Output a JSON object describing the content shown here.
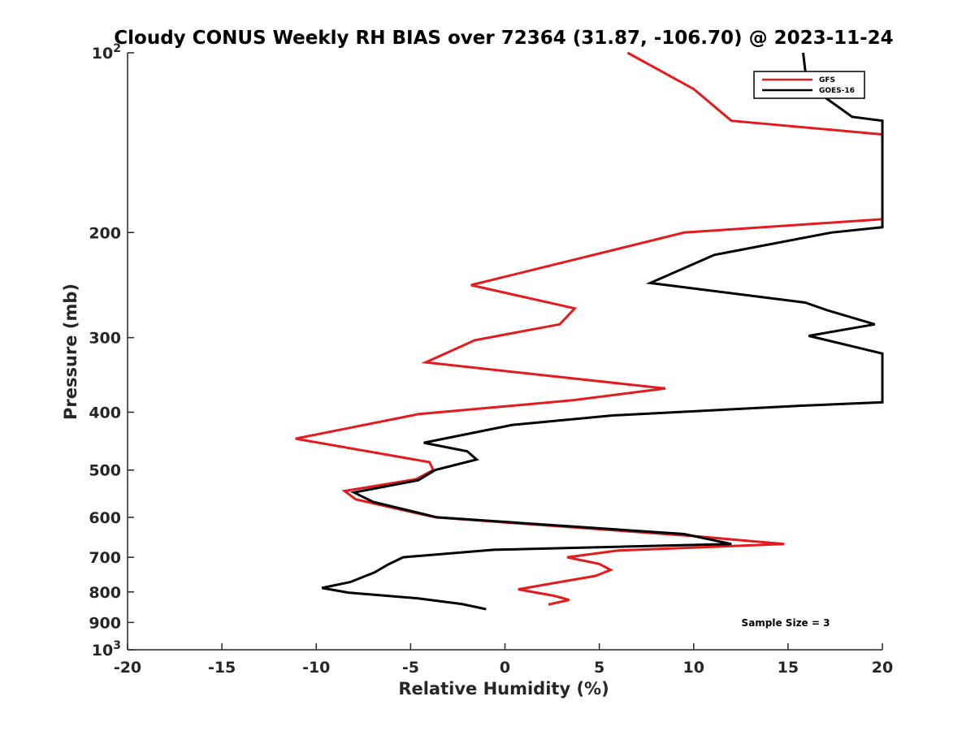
{
  "chart_data": {
    "type": "line",
    "title": "Cloudy CONUS Weekly RH BIAS over 72364 (31.87, -106.70) @ 2023-11-24",
    "xlabel": "Relative Humidity (%)",
    "ylabel": "Pressure (mb)",
    "xlim": [
      -20,
      20
    ],
    "ylim": [
      100,
      1000
    ],
    "y_scale": "log",
    "y_reversed": true,
    "x_ticks": [
      {
        "value": -20,
        "label": "-20"
      },
      {
        "value": -15,
        "label": "-15"
      },
      {
        "value": -10,
        "label": "-10"
      },
      {
        "value": -5,
        "label": "-5"
      },
      {
        "value": 0,
        "label": "0"
      },
      {
        "value": 5,
        "label": "5"
      },
      {
        "value": 10,
        "label": "10"
      },
      {
        "value": 15,
        "label": "15"
      },
      {
        "value": 20,
        "label": "20"
      }
    ],
    "y_ticks": [
      {
        "value": 100,
        "base": "10",
        "exp": "2"
      },
      {
        "value": 200,
        "base": "200",
        "exp": ""
      },
      {
        "value": 300,
        "base": "300",
        "exp": ""
      },
      {
        "value": 400,
        "base": "400",
        "exp": ""
      },
      {
        "value": 500,
        "base": "500",
        "exp": ""
      },
      {
        "value": 600,
        "base": "600",
        "exp": ""
      },
      {
        "value": 700,
        "base": "700",
        "exp": ""
      },
      {
        "value": 800,
        "base": "800",
        "exp": ""
      },
      {
        "value": 900,
        "base": "900",
        "exp": ""
      },
      {
        "value": 1000,
        "base": "10",
        "exp": "3"
      }
    ],
    "grid": false,
    "legend_position": "top-right",
    "series": [
      {
        "name": "GFS",
        "color": "#e41a1c",
        "points": [
          [
            6.5,
            100
          ],
          [
            10,
            115
          ],
          [
            12,
            130
          ],
          [
            20,
            137
          ],
          [
            20,
            190
          ],
          [
            9.5,
            200
          ],
          [
            -1.8,
            245
          ],
          [
            3.7,
            268
          ],
          [
            2.9,
            285
          ],
          [
            -1.6,
            303
          ],
          [
            -4.2,
            330
          ],
          [
            8.5,
            365
          ],
          [
            3.6,
            382
          ],
          [
            -4.6,
            403
          ],
          [
            -11.1,
            443
          ],
          [
            -4,
            485
          ],
          [
            -3.8,
            500
          ],
          [
            -4.7,
            518
          ],
          [
            -8.5,
            542
          ],
          [
            -7.9,
            560
          ],
          [
            -3.7,
            600
          ],
          [
            10,
            645
          ],
          [
            14.8,
            665
          ],
          [
            6,
            682
          ],
          [
            3.3,
            700
          ],
          [
            5,
            718
          ],
          [
            5.6,
            735
          ],
          [
            4.8,
            752
          ],
          [
            2.1,
            778
          ],
          [
            0.7,
            792
          ],
          [
            2.6,
            812
          ],
          [
            3.4,
            825
          ],
          [
            2.3,
            840
          ]
        ]
      },
      {
        "name": "GOES-16",
        "color": "#000000",
        "points": [
          [
            15.8,
            100
          ],
          [
            16,
            113
          ],
          [
            18.4,
            128
          ],
          [
            20,
            130
          ],
          [
            20,
            196
          ],
          [
            17.3,
            200
          ],
          [
            11.1,
            218
          ],
          [
            7.7,
            243
          ],
          [
            15.9,
            262
          ],
          [
            17.1,
            270
          ],
          [
            19.6,
            285
          ],
          [
            16.1,
            298
          ],
          [
            20,
            319
          ],
          [
            20,
            385
          ],
          [
            20,
            385
          ],
          [
            15.8,
            390
          ],
          [
            5.7,
            405
          ],
          [
            0.4,
            420
          ],
          [
            -4.3,
            450
          ],
          [
            -2,
            465
          ],
          [
            -1.5,
            480
          ],
          [
            -3.7,
            500
          ],
          [
            -4.6,
            520
          ],
          [
            -8,
            545
          ],
          [
            -7,
            565
          ],
          [
            -3.6,
            600
          ],
          [
            9.5,
            640
          ],
          [
            12,
            665
          ],
          [
            -0.6,
            680
          ],
          [
            -5.4,
            700
          ],
          [
            -6.2,
            720
          ],
          [
            -6.9,
            742
          ],
          [
            -8.2,
            770
          ],
          [
            -9.7,
            788
          ],
          [
            -8.3,
            802
          ],
          [
            -4.6,
            820
          ],
          [
            -2.3,
            838
          ],
          [
            -1,
            855
          ]
        ]
      }
    ],
    "annotation": "Sample Size = 3"
  }
}
